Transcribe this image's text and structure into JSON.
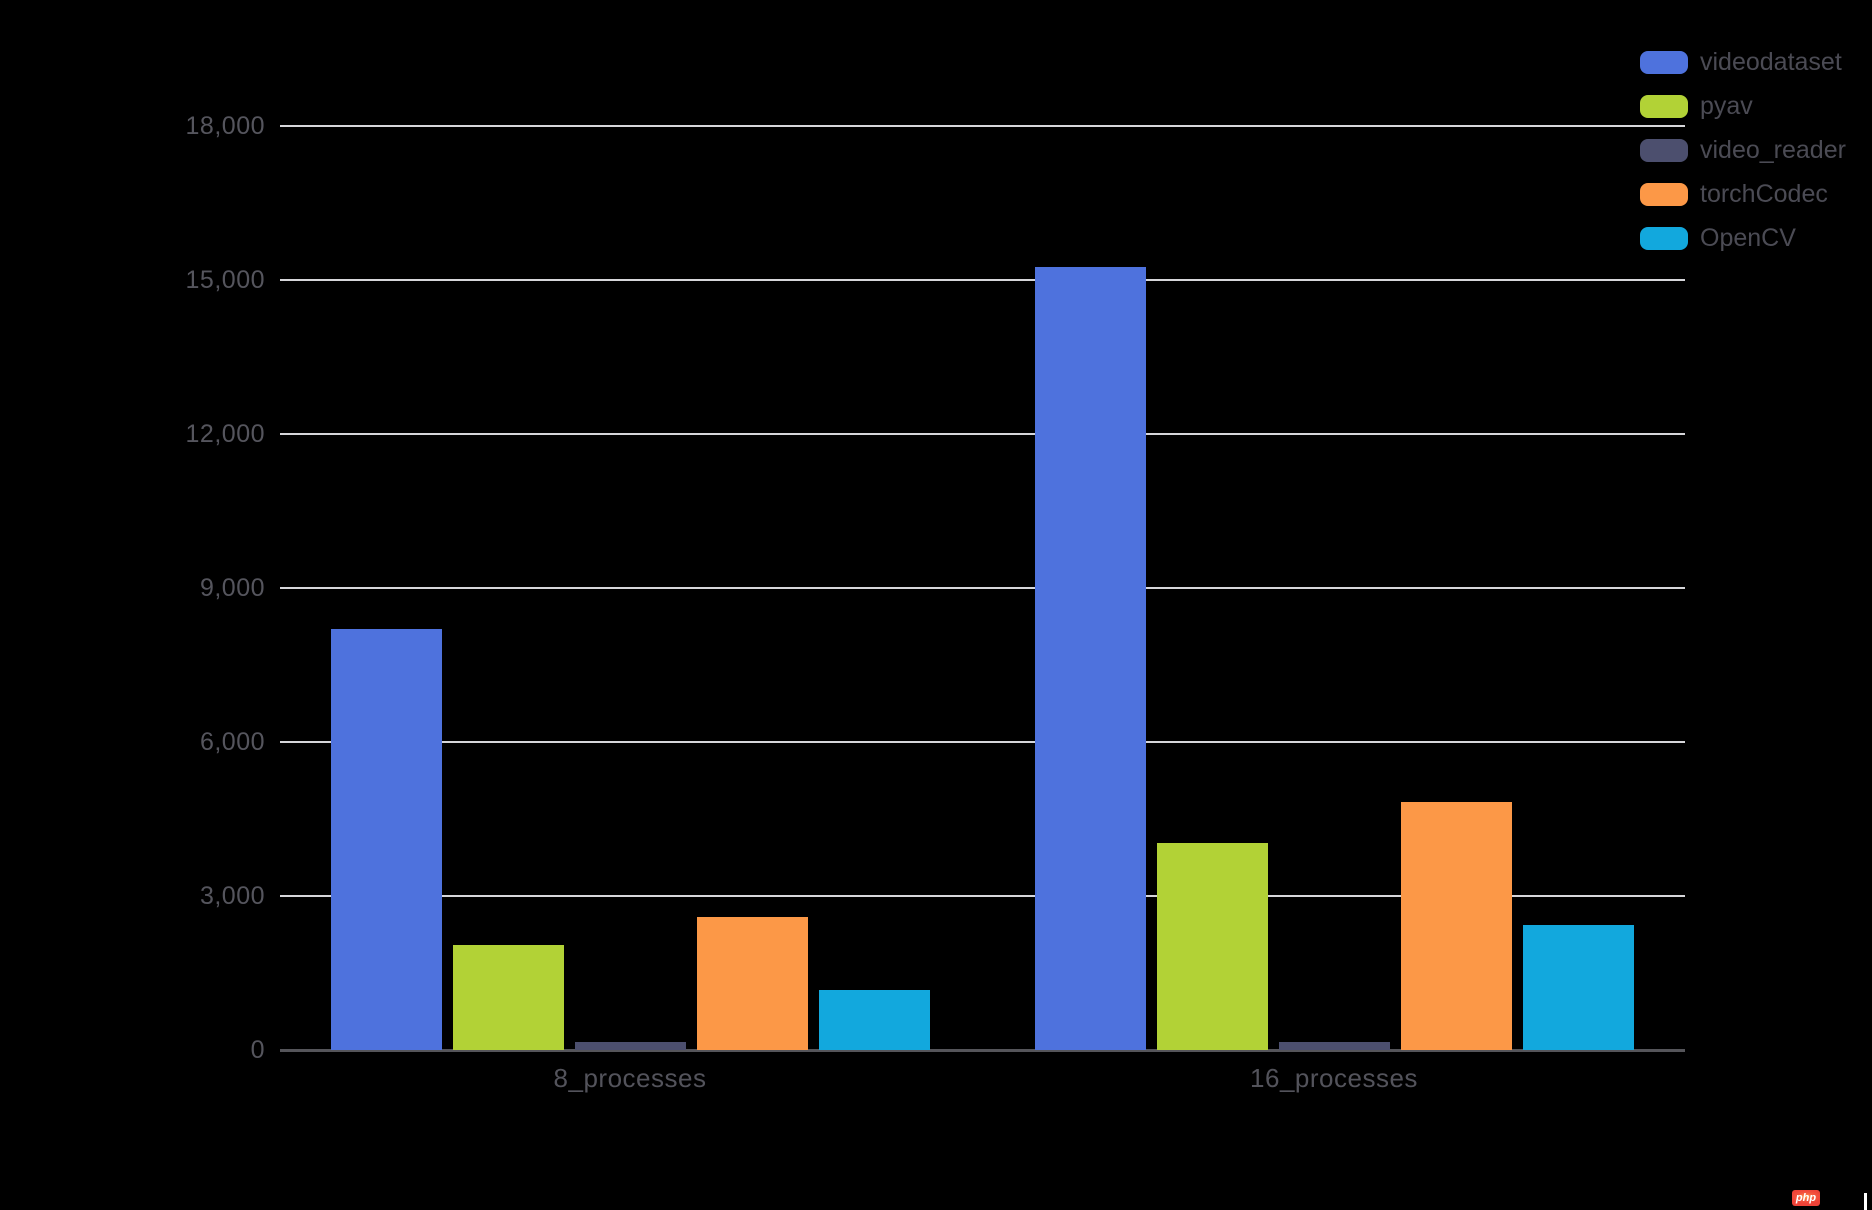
{
  "chart_data": {
    "type": "bar",
    "title": "",
    "categories": [
      "8_processes",
      "16_processes"
    ],
    "series": [
      {
        "name": "videodataset",
        "color": "#4e72dd",
        "values": [
          8200,
          15250
        ]
      },
      {
        "name": "pyav",
        "color": "#b2d236",
        "values": [
          2040,
          4030
        ]
      },
      {
        "name": "video_reader",
        "color": "#4c4f6e",
        "values": [
          160,
          160
        ]
      },
      {
        "name": "torchCodec",
        "color": "#fc9847",
        "values": [
          2600,
          4830
        ]
      },
      {
        "name": "OpenCV",
        "color": "#12a8dd",
        "values": [
          1170,
          2430
        ]
      }
    ],
    "xlabel": "",
    "ylabel": "",
    "ylim": [
      0,
      18000
    ],
    "yticks": [
      0,
      3000,
      6000,
      9000,
      12000,
      15000,
      18000
    ],
    "ytick_labels": [
      "0",
      "3,000",
      "6,000",
      "9,000",
      "12,000",
      "15,000",
      "18,000"
    ],
    "grid": true,
    "legend_position": "top-right"
  },
  "style": {
    "background": "#000000",
    "gridline_color": "#d6d6da",
    "axis_line_color": "#55555a",
    "tick_label_color": "#55555d",
    "x_label_color": "#53535b",
    "legend_text_color": "#4b4b54"
  },
  "watermark": {
    "label": "php",
    "badge_color": "#ee4237"
  }
}
